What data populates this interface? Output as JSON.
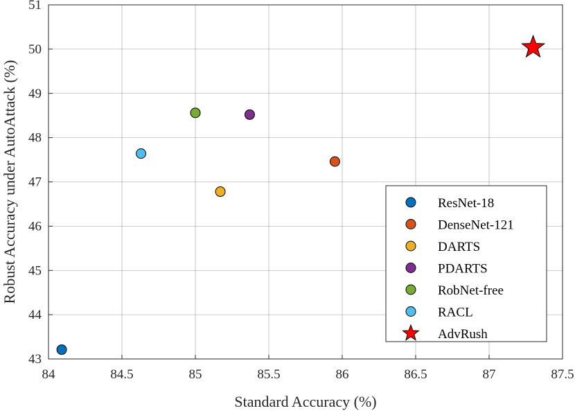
{
  "chart_data": {
    "type": "scatter",
    "xlabel": "Standard Accuracy (%)",
    "ylabel": "Robust Accuracy under AutoAttack (%)",
    "xlim": [
      84,
      87.5
    ],
    "ylim": [
      43,
      51
    ],
    "xticks": [
      "84",
      "84.5",
      "85",
      "85.5",
      "86",
      "86.5",
      "87",
      "87.5"
    ],
    "yticks": [
      "43",
      "44",
      "45",
      "46",
      "47",
      "48",
      "49",
      "50",
      "51"
    ],
    "grid": true,
    "legend_position": "bottom-right",
    "series": [
      {
        "name": "ResNet-18",
        "x": 84.09,
        "y": 43.21,
        "color": "#0072BD",
        "marker": "circle"
      },
      {
        "name": "DenseNet-121",
        "x": 85.95,
        "y": 47.46,
        "color": "#D95319",
        "marker": "circle"
      },
      {
        "name": "DARTS",
        "x": 85.17,
        "y": 46.78,
        "color": "#EDB120",
        "marker": "circle"
      },
      {
        "name": "PDARTS",
        "x": 85.37,
        "y": 48.52,
        "color": "#7E2F8E",
        "marker": "circle"
      },
      {
        "name": "RobNet-free",
        "x": 85.0,
        "y": 48.56,
        "color": "#77AC30",
        "marker": "circle"
      },
      {
        "name": "RACL",
        "x": 84.63,
        "y": 47.64,
        "color": "#4DBEEE",
        "marker": "circle"
      },
      {
        "name": "AdvRush",
        "x": 87.3,
        "y": 50.04,
        "color": "#FF0000",
        "marker": "star"
      }
    ]
  }
}
